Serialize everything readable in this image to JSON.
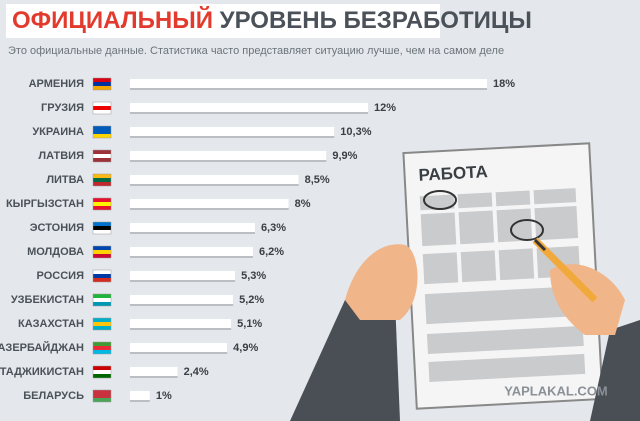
{
  "chart_data": {
    "type": "bar",
    "title": [
      "ОФИЦИАЛЬНЫЙ",
      "УРОВЕНЬ БЕЗРАБОТИЦЫ"
    ],
    "subtitle": "Это официальные данные. Статистика часто представляет ситуацию лучше, чем на самом деле",
    "categories": [
      "АРМЕНИЯ",
      "ГРУЗИЯ",
      "УКРАИНА",
      "ЛАТВИЯ",
      "ЛИТВА",
      "КЫРГЫЗСТАН",
      "ЭСТОНИЯ",
      "МОЛДОВА",
      "РОССИЯ",
      "УЗБЕКИСТАН",
      "КАЗАХСТАН",
      "АЗЕРБАЙДЖАН",
      "ТАДЖИКИСТАН",
      "БЕЛАРУСЬ"
    ],
    "values": [
      18,
      12,
      10.3,
      9.9,
      8.5,
      8,
      6.3,
      6.2,
      5.3,
      5.2,
      5.1,
      4.9,
      2.4,
      1
    ],
    "value_labels": [
      "18%",
      "12%",
      "10,3%",
      "9,9%",
      "8,5%",
      "8%",
      "6,3%",
      "6,2%",
      "5,3%",
      "5,2%",
      "5,1%",
      "4,9%",
      "2,4%",
      "1%"
    ],
    "color": "#ffffff",
    "illustration_label": "РАБОТА",
    "watermark": "YAPLAKAL.COM"
  }
}
